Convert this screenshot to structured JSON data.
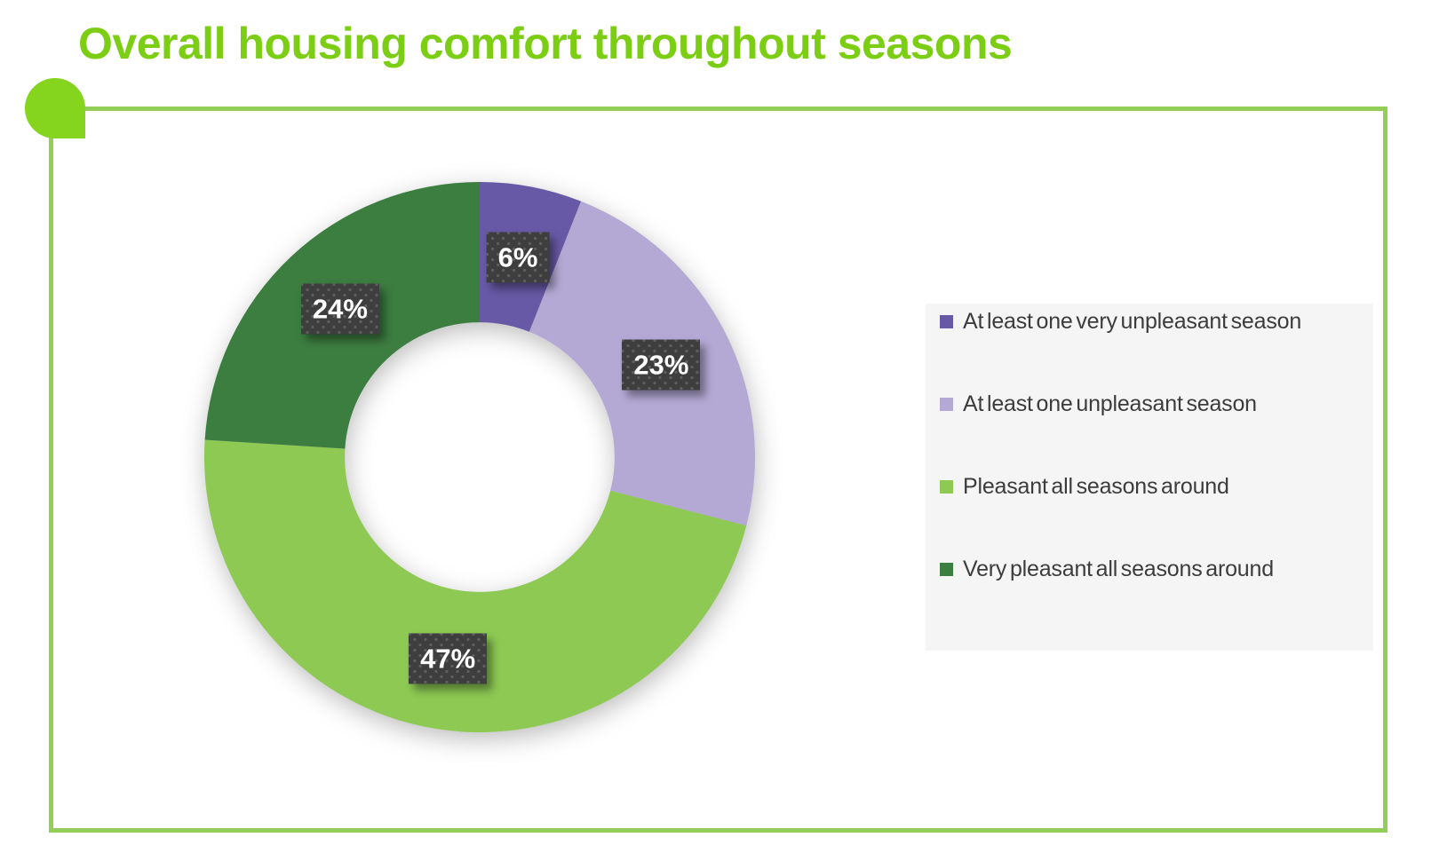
{
  "title": "Overall housing comfort throughout seasons",
  "accent": {
    "title_color": "#7CCE14",
    "frame_border_color": "#92CE58",
    "corner_dot_color": "#85D41D",
    "data_label_box_color": "#3E3E3E",
    "data_label_text_color": "#FFFFFF",
    "legend_background_color": "#F5F5F5",
    "legend_text_color": "#3C3C3C"
  },
  "chart_data": {
    "type": "pie",
    "subtype": "donut",
    "title": "Overall housing comfort throughout seasons",
    "categories": [
      "At least one very unpleasant season",
      "At least one unpleasant season",
      "Pleasant all seasons around",
      "Very pleasant all seasons around"
    ],
    "values": [
      6,
      23,
      47,
      24
    ],
    "unit": "%",
    "data_labels": [
      "6%",
      "23%",
      "47%",
      "24%"
    ],
    "colors": [
      "#6859A6",
      "#B4A9D5",
      "#8DC953",
      "#3C7D40"
    ],
    "start_angle": 0,
    "direction": "clockwise",
    "inner_radius_ratio": 0.49,
    "label_radius_ratio": 0.74,
    "legend_position": "right",
    "grid": false
  }
}
